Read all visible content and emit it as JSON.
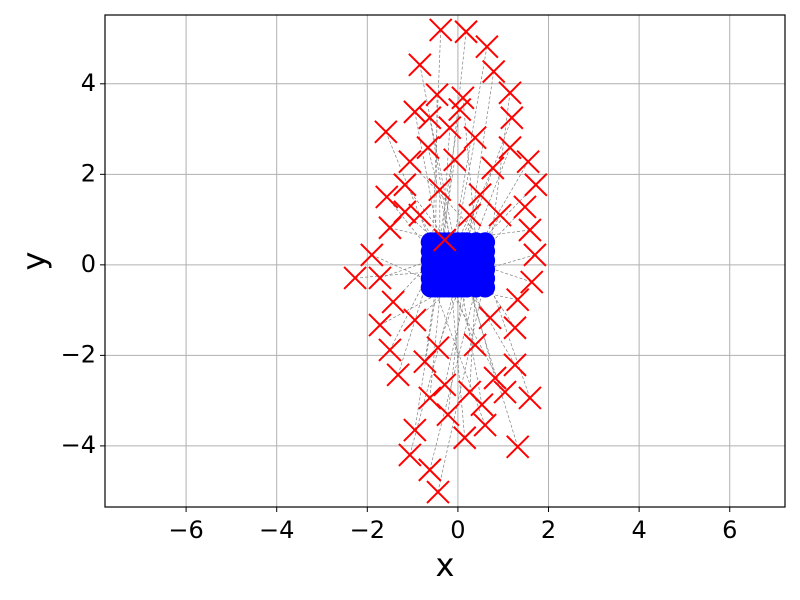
{
  "chart_data": {
    "type": "scatter",
    "xlabel": "x",
    "ylabel": "y",
    "xlim": [
      -7.79,
      7.22
    ],
    "ylim": [
      -5.35,
      5.52
    ],
    "xticks": [
      {
        "value": -6,
        "label": "−6"
      },
      {
        "value": -4,
        "label": "−4"
      },
      {
        "value": -2,
        "label": "−2"
      },
      0,
      2,
      4,
      6
    ],
    "yticks": [
      {
        "value": -4,
        "label": "−4"
      },
      {
        "value": -2,
        "label": "−2"
      },
      0,
      2,
      4
    ],
    "grid": true,
    "connect": true,
    "connect_color": "#808080",
    "series": [
      {
        "color": "#ff0000",
        "marker": "x",
        "x": [
          -0.38,
          0.18,
          0.64,
          -0.84,
          0.79,
          0.11,
          1.15,
          -0.46,
          -0.95,
          -0.62,
          1.19,
          -1.59,
          -0.18,
          0.38,
          -0.66,
          1.15,
          1.55,
          -1.06,
          -0.07,
          0.77,
          1.72,
          -1.17,
          -1.57,
          -0.4,
          0.49,
          1.48,
          -1.17,
          0.93,
          -1.5,
          1.59,
          -1.9,
          1.7,
          -2.27,
          -1.72,
          1.63,
          -1.43,
          1.32,
          -1.72,
          1.26,
          -0.95,
          0.71,
          -1.5,
          0.38,
          -0.44,
          -1.32,
          -0.73,
          1.26,
          0.82,
          -0.29,
          0.26,
          1.59,
          1.04,
          -0.62,
          0.53,
          -0.22,
          0.6,
          -0.95,
          0.15,
          1.32,
          -1.06,
          -0.62,
          -0.44,
          0.04,
          -0.84,
          0.26,
          -0.29
        ],
        "y": [
          5.19,
          5.15,
          4.82,
          4.42,
          4.27,
          3.69,
          3.8,
          3.76,
          3.38,
          3.25,
          3.25,
          2.94,
          3.03,
          2.81,
          2.59,
          2.59,
          2.28,
          2.28,
          2.32,
          2.14,
          1.77,
          1.77,
          1.5,
          1.66,
          1.55,
          1.28,
          1.17,
          1.1,
          0.82,
          0.77,
          0.22,
          0.22,
          -0.29,
          -0.29,
          -0.38,
          -0.82,
          -0.77,
          -1.33,
          -1.39,
          -1.22,
          -1.17,
          -1.88,
          -1.77,
          -1.83,
          -2.43,
          -2.14,
          -2.21,
          -2.5,
          -2.65,
          -2.81,
          -2.94,
          -2.81,
          -2.94,
          -3.09,
          -3.31,
          -3.54,
          -3.65,
          -3.82,
          -4.02,
          -4.2,
          -4.53,
          -5.02,
          3.43,
          1.1,
          1.1,
          0.55
        ]
      },
      {
        "color": "#0000ff",
        "marker": "o",
        "x": [
          -0.6,
          -0.4,
          -0.2,
          0,
          0.2,
          0.4,
          0.6,
          -0.5,
          -0.3,
          -0.1,
          0.1,
          -0.6,
          -0.4,
          -0.2,
          0,
          0.2,
          0.4,
          0.6,
          -0.5,
          -0.3,
          -0.1,
          0.1,
          -0.6,
          -0.4,
          -0.2,
          0,
          0.2,
          0.4,
          0.6,
          -0.5,
          -0.3,
          -0.1,
          0.1,
          -0.6,
          -0.4,
          -0.2,
          0,
          0.2,
          0.4,
          0.6,
          -0.5,
          -0.3,
          -0.1,
          0.1,
          -0.6,
          -0.4,
          -0.2,
          0,
          0.2,
          0.4,
          0.6,
          -0.5,
          -0.3,
          -0.1,
          0.1,
          -0.6,
          -0.4,
          -0.2,
          0,
          0.2,
          0.4,
          0.6,
          -0.5,
          -0.3,
          -0.1,
          0.1
        ],
        "y": [
          -0.5,
          -0.3,
          -0.1,
          0.1,
          0.3,
          0.5,
          -0.5,
          -0.3,
          -0.1,
          0.1,
          0.3,
          0.5,
          -0.5,
          -0.3,
          -0.1,
          0.1,
          0.3,
          0.5,
          -0.5,
          -0.3,
          -0.1,
          0.1,
          0.3,
          0.5,
          -0.5,
          -0.3,
          -0.1,
          0.1,
          0.3,
          0.5,
          -0.5,
          -0.3,
          -0.1,
          0.1,
          0.3,
          0.5,
          -0.5,
          -0.3,
          -0.1,
          0.1,
          0.3,
          0.5,
          -0.5,
          -0.3,
          -0.1,
          0.1,
          0.3,
          0.5,
          -0.5,
          -0.3,
          -0.1,
          0.1,
          0.3,
          0.5,
          -0.5,
          -0.3,
          -0.1,
          0.1,
          0.3,
          0.5,
          -0.5,
          -0.3,
          -0.1,
          0.1,
          0.3,
          0.5
        ]
      }
    ]
  }
}
